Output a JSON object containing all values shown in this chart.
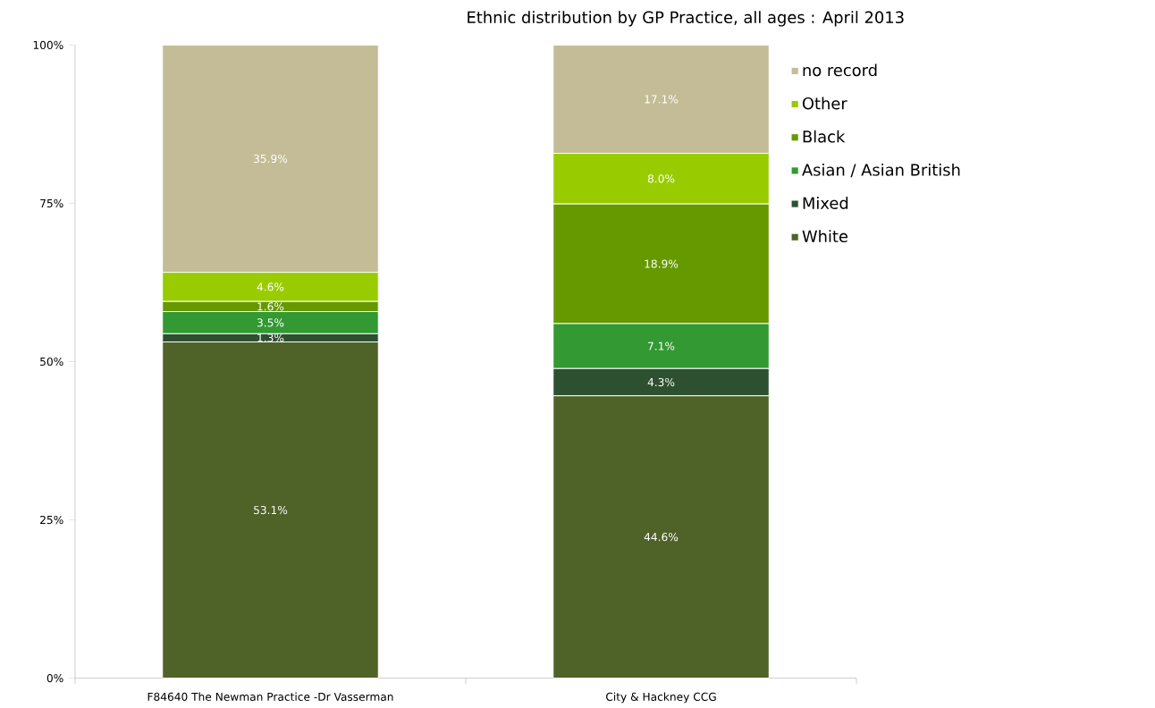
{
  "chart_data": {
    "type": "bar",
    "title": "Ethnic distribution by GP Practice, all ages :  April 2013",
    "categories": [
      "F84640  The Newman Practice -Dr Vasserman",
      "City & Hackney CCG"
    ],
    "stacked": true,
    "legend": "top right",
    "grid": false,
    "ylim": [
      0,
      100
    ],
    "yticks": [
      {
        "value": 0,
        "label": "0%"
      },
      {
        "value": 25,
        "label": "25%"
      },
      {
        "value": 50,
        "label": "50%"
      },
      {
        "value": 75,
        "label": "75%"
      },
      {
        "value": 100,
        "label": "100%"
      }
    ],
    "series": [
      {
        "name": "White",
        "color": "#4f6228",
        "values": [
          53.1,
          44.6
        ],
        "value_labels": [
          "53.1%",
          "44.6%"
        ]
      },
      {
        "name": "Mixed",
        "color": "#2d5030",
        "values": [
          1.3,
          4.3
        ],
        "value_labels": [
          "1.3%",
          "4.3%"
        ]
      },
      {
        "name": "Asian / Asian British",
        "color": "#339933",
        "values": [
          3.5,
          7.1
        ],
        "value_labels": [
          "3.5%",
          "7.1%"
        ]
      },
      {
        "name": "Black",
        "color": "#669900",
        "values": [
          1.6,
          18.9
        ],
        "value_labels": [
          "1.6%",
          "18.9%"
        ]
      },
      {
        "name": "Other",
        "color": "#99cc00",
        "values": [
          4.6,
          8.0
        ],
        "value_labels": [
          "4.6%",
          "8.0%"
        ]
      },
      {
        "name": "no record",
        "color": "#c4bc96",
        "values": [
          35.9,
          17.1
        ],
        "value_labels": [
          "35.9%",
          "17.1%"
        ]
      }
    ]
  }
}
